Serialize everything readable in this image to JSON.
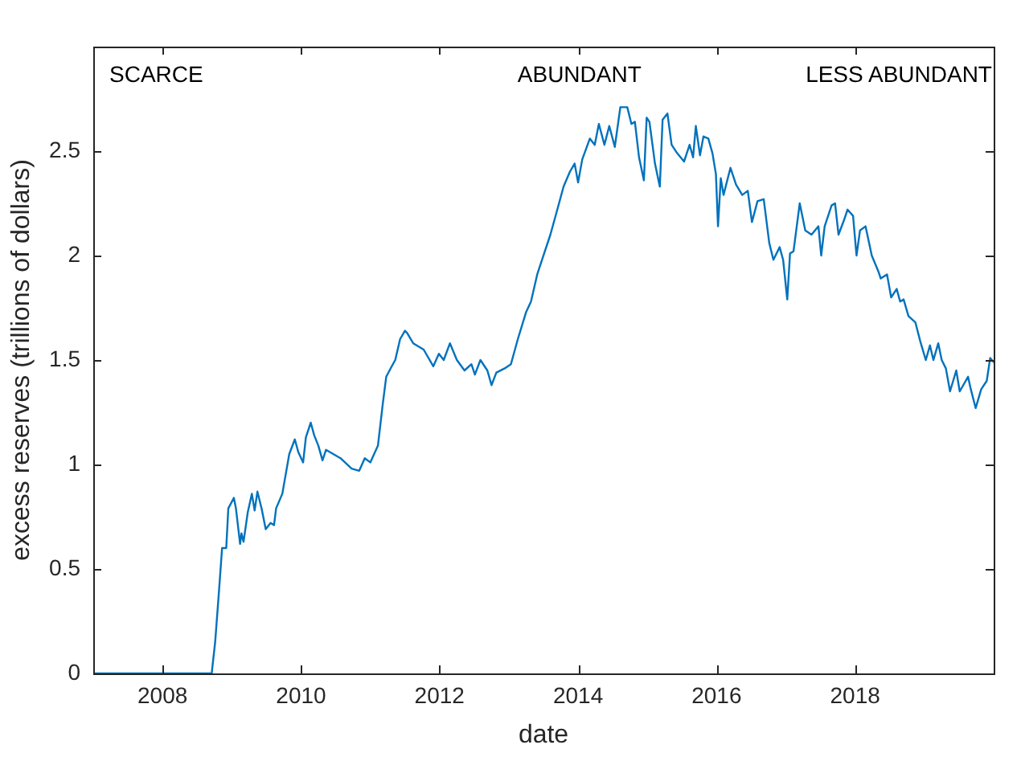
{
  "chart_data": {
    "type": "line",
    "xlabel": "date",
    "ylabel": "excess reserves (trillions of dollars)",
    "annotations": [
      "SCARCE",
      "ABUNDANT",
      "LESS ABUNDANT"
    ],
    "xlim": [
      2007,
      2020
    ],
    "xticks": [
      2008,
      2010,
      2012,
      2014,
      2016,
      2018
    ],
    "ylim": [
      0,
      3
    ],
    "yticks": [
      0,
      0.5,
      1,
      1.5,
      2,
      2.5
    ],
    "grid": false,
    "legend": false,
    "marker": "none",
    "line_style": "solid",
    "series": [
      {
        "color": "#0072bd",
        "x": [
          2007,
          2008,
          2008.71,
          2008.76,
          2008.81,
          2008.86,
          2008.92,
          2008.95,
          2009.03,
          2009.06,
          2009.12,
          2009.14,
          2009.17,
          2009.23,
          2009.29,
          2009.33,
          2009.37,
          2009.43,
          2009.49,
          2009.56,
          2009.61,
          2009.64,
          2009.73,
          2009.83,
          2009.91,
          2009.96,
          2010.03,
          2010.07,
          2010.14,
          2010.19,
          2010.25,
          2010.31,
          2010.36,
          2010.57,
          2010.73,
          2010.84,
          2010.92,
          2011,
          2011.11,
          2011.18,
          2011.23,
          2011.31,
          2011.36,
          2011.43,
          2011.5,
          2011.53,
          2011.62,
          2011.77,
          2011.91,
          2011.99,
          2012.06,
          2012.15,
          2012.25,
          2012.36,
          2012.46,
          2012.51,
          2012.59,
          2012.69,
          2012.75,
          2012.82,
          2012.94,
          2013.03,
          2013.13,
          2013.25,
          2013.32,
          2013.41,
          2013.48,
          2013.6,
          2013.7,
          2013.79,
          2013.88,
          2013.95,
          2014,
          2014.06,
          2014.17,
          2014.24,
          2014.3,
          2014.38,
          2014.45,
          2014.53,
          2014.61,
          2014.71,
          2014.77,
          2014.82,
          2014.88,
          2014.95,
          2014.99,
          2015.03,
          2015.11,
          2015.18,
          2015.22,
          2015.29,
          2015.35,
          2015.43,
          2015.53,
          2015.61,
          2015.66,
          2015.7,
          2015.76,
          2015.81,
          2015.88,
          2015.94,
          2015.99,
          2016.02,
          2016.06,
          2016.1,
          2016.2,
          2016.28,
          2016.37,
          2016.45,
          2016.51,
          2016.59,
          2016.68,
          2016.76,
          2016.82,
          2016.91,
          2016.96,
          2017.02,
          2017.06,
          2017.11,
          2017.2,
          2017.28,
          2017.37,
          2017.47,
          2017.51,
          2017.56,
          2017.66,
          2017.71,
          2017.76,
          2017.84,
          2017.89,
          2017.97,
          2018.02,
          2018.07,
          2018.15,
          2018.24,
          2018.34,
          2018.37,
          2018.46,
          2018.52,
          2018.6,
          2018.65,
          2018.7,
          2018.77,
          2018.87,
          2018.94,
          2019.02,
          2019.08,
          2019.13,
          2019.2,
          2019.25,
          2019.31,
          2019.37,
          2019.46,
          2019.51,
          2019.63,
          2019.67,
          2019.74,
          2019.82,
          2019.9,
          2019.95,
          2020
        ],
        "values": [
          0,
          0,
          0,
          0.15,
          0.37,
          0.6,
          0.6,
          0.79,
          0.84,
          0.79,
          0.62,
          0.67,
          0.63,
          0.77,
          0.86,
          0.78,
          0.87,
          0.79,
          0.69,
          0.72,
          0.71,
          0.79,
          0.86,
          1.05,
          1.12,
          1.06,
          1.01,
          1.13,
          1.2,
          1.14,
          1.09,
          1.02,
          1.07,
          1.03,
          0.98,
          0.97,
          1.03,
          1.01,
          1.09,
          1.29,
          1.42,
          1.47,
          1.5,
          1.6,
          1.64,
          1.63,
          1.58,
          1.55,
          1.47,
          1.53,
          1.5,
          1.58,
          1.5,
          1.45,
          1.48,
          1.43,
          1.5,
          1.45,
          1.38,
          1.44,
          1.46,
          1.48,
          1.6,
          1.73,
          1.78,
          1.91,
          1.98,
          2.1,
          2.22,
          2.33,
          2.4,
          2.44,
          2.35,
          2.46,
          2.56,
          2.53,
          2.63,
          2.53,
          2.62,
          2.52,
          2.71,
          2.71,
          2.63,
          2.64,
          2.47,
          2.36,
          2.66,
          2.64,
          2.44,
          2.33,
          2.65,
          2.68,
          2.53,
          2.49,
          2.45,
          2.53,
          2.47,
          2.62,
          2.48,
          2.57,
          2.56,
          2.49,
          2.39,
          2.14,
          2.37,
          2.29,
          2.42,
          2.34,
          2.29,
          2.31,
          2.16,
          2.26,
          2.27,
          2.06,
          1.98,
          2.04,
          1.98,
          1.79,
          2.01,
          2.02,
          2.25,
          2.12,
          2.1,
          2.14,
          2,
          2.14,
          2.24,
          2.25,
          2.1,
          2.17,
          2.22,
          2.19,
          2,
          2.12,
          2.14,
          2,
          1.92,
          1.89,
          1.91,
          1.8,
          1.84,
          1.78,
          1.79,
          1.71,
          1.68,
          1.59,
          1.5,
          1.57,
          1.5,
          1.58,
          1.5,
          1.46,
          1.35,
          1.45,
          1.35,
          1.42,
          1.36,
          1.27,
          1.36,
          1.4,
          1.51,
          1.49
        ]
      }
    ]
  }
}
